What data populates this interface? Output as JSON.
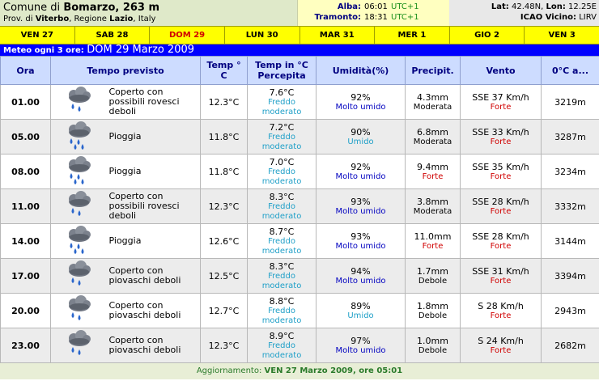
{
  "location": {
    "prefix": "Comune di ",
    "name": "Bomarzo, 263 m",
    "province_label": "Prov. di",
    "province": "Viterbo",
    "region_label": ", Regione",
    "region": "Lazio",
    "country": ", Italy"
  },
  "sun": {
    "sunrise_label": "Alba:",
    "sunrise": "06:01",
    "sunrise_tz": "UTC+1",
    "sunset_label": "Tramonto:",
    "sunset": "18:31",
    "sunset_tz": "UTC+1"
  },
  "geo": {
    "lat_label": "Lat:",
    "lat": "42.48N,",
    "lon_label": "Lon:",
    "lon": "12.25E",
    "icao_label": "ICAO Vicino:",
    "icao": "LIRV"
  },
  "days": [
    "VEN 27",
    "SAB 28",
    "DOM 29",
    "LUN 30",
    "MAR 31",
    "MER 1",
    "GIO 2",
    "VEN 3"
  ],
  "active_day_index": 2,
  "subheader": {
    "prefix": "Meteo ogni 3 ore:",
    "date": "DOM 29 Marzo 2009"
  },
  "headers": {
    "ora": "Ora",
    "tempo": "Tempo previsto",
    "temp_l1": "Temp °",
    "temp_l2": "C",
    "perc_l1": "Temp in °C",
    "perc_l2": "Percepita",
    "umid": "Umidità(%)",
    "precip": "Precipit.",
    "vento": "Vento",
    "zero": "0°C a..."
  },
  "rows": [
    {
      "hour": "01.00",
      "icon": "cloud-showers-icon",
      "desc": [
        "Coperto con",
        "possibili rovesci",
        "deboli"
      ],
      "temp": "12.3°C",
      "perc": "7.6°C",
      "perc_note": [
        "Freddo",
        "moderato"
      ],
      "hum": "92%",
      "hum_note": "Molto umido",
      "hum_note_color": "blue",
      "precip": "4.3mm",
      "precip_note": "Moderata",
      "precip_note_color": "dark",
      "wind": "SSE 37 Km/h",
      "wind_note": "Forte",
      "zero": "3219m"
    },
    {
      "hour": "05.00",
      "icon": "cloud-rain-icon",
      "desc": [
        "Pioggia"
      ],
      "temp": "11.8°C",
      "perc": "7.2°C",
      "perc_note": [
        "Freddo",
        "moderato"
      ],
      "hum": "90%",
      "hum_note": "Umido",
      "hum_note_color": "cyan",
      "precip": "6.8mm",
      "precip_note": "Moderata",
      "precip_note_color": "dark",
      "wind": "SSE 33 Km/h",
      "wind_note": "Forte",
      "zero": "3287m"
    },
    {
      "hour": "08.00",
      "icon": "cloud-rain-icon",
      "desc": [
        "Pioggia"
      ],
      "temp": "11.8°C",
      "perc": "7.0°C",
      "perc_note": [
        "Freddo",
        "moderato"
      ],
      "hum": "92%",
      "hum_note": "Molto umido",
      "hum_note_color": "blue",
      "precip": "9.4mm",
      "precip_note": "Forte",
      "precip_note_color": "red",
      "wind": "SSE 35 Km/h",
      "wind_note": "Forte",
      "zero": "3234m"
    },
    {
      "hour": "11.00",
      "icon": "cloud-showers-icon",
      "desc": [
        "Coperto con",
        "possibili rovesci",
        "deboli"
      ],
      "temp": "12.3°C",
      "perc": "8.3°C",
      "perc_note": [
        "Freddo",
        "moderato"
      ],
      "hum": "93%",
      "hum_note": "Molto umido",
      "hum_note_color": "blue",
      "precip": "3.8mm",
      "precip_note": "Moderata",
      "precip_note_color": "dark",
      "wind": "SSE 28 Km/h",
      "wind_note": "Forte",
      "zero": "3332m"
    },
    {
      "hour": "14.00",
      "icon": "cloud-rain-icon",
      "desc": [
        "Pioggia"
      ],
      "temp": "12.6°C",
      "perc": "8.7°C",
      "perc_note": [
        "Freddo",
        "moderato"
      ],
      "hum": "93%",
      "hum_note": "Molto umido",
      "hum_note_color": "blue",
      "precip": "11.0mm",
      "precip_note": "Forte",
      "precip_note_color": "red",
      "wind": "SSE 28 Km/h",
      "wind_note": "Forte",
      "zero": "3144m"
    },
    {
      "hour": "17.00",
      "icon": "cloud-showers-icon",
      "desc": [
        "Coperto con",
        "piovaschi deboli"
      ],
      "temp": "12.5°C",
      "perc": "8.3°C",
      "perc_note": [
        "Freddo",
        "moderato"
      ],
      "hum": "94%",
      "hum_note": "Molto umido",
      "hum_note_color": "blue",
      "precip": "1.7mm",
      "precip_note": "Debole",
      "precip_note_color": "dark",
      "wind": "SSE 31 Km/h",
      "wind_note": "Forte",
      "zero": "3394m"
    },
    {
      "hour": "20.00",
      "icon": "cloud-showers-icon",
      "desc": [
        "Coperto con",
        "piovaschi deboli"
      ],
      "temp": "12.7°C",
      "perc": "8.8°C",
      "perc_note": [
        "Freddo",
        "moderato"
      ],
      "hum": "89%",
      "hum_note": "Umido",
      "hum_note_color": "cyan",
      "precip": "1.8mm",
      "precip_note": "Debole",
      "precip_note_color": "dark",
      "wind": "S 28 Km/h",
      "wind_note": "Forte",
      "zero": "2943m"
    },
    {
      "hour": "23.00",
      "icon": "cloud-showers-icon",
      "desc": [
        "Coperto con",
        "piovaschi deboli"
      ],
      "temp": "12.3°C",
      "perc": "8.9°C",
      "perc_note": [
        "Freddo",
        "moderato"
      ],
      "hum": "97%",
      "hum_note": "Molto umido",
      "hum_note_color": "blue",
      "precip": "1.0mm",
      "precip_note": "Debole",
      "precip_note_color": "dark",
      "wind": "S 24 Km/h",
      "wind_note": "Forte",
      "zero": "2682m"
    }
  ],
  "footer": {
    "label": "Aggiornamento:",
    "value": "VEN 27 Marzo 2009, ore 05:01"
  },
  "colors": {
    "day_bar": "#ffff00",
    "active_day": "#d00000",
    "subheader_bg": "#0000ff",
    "header_bg": "#cddcff",
    "header_text": "#000080"
  }
}
